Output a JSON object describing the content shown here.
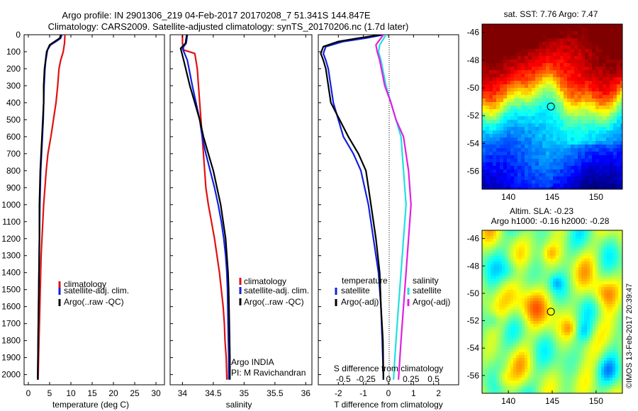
{
  "header": {
    "line1": "Argo profile: IN 2901306_219 04-Feb-2017 20170208_7 51.341S 144.847E",
    "line2": "Climatology: CARS2009. Satellite-adjusted climatology: synTS_20170206.nc (1.7d later)"
  },
  "colors": {
    "climatology": "#e01010",
    "satellite": "#1020e0",
    "argo": "#000000",
    "sat_salinity": "#20e0e0",
    "argo_salinity": "#e020e0"
  },
  "depth_ticks": [
    "0",
    "100",
    "200",
    "300",
    "400",
    "500",
    "600",
    "700",
    "800",
    "900",
    "1000",
    "1100",
    "1200",
    "1300",
    "1400",
    "1500",
    "1600",
    "1700",
    "1800",
    "1900",
    "2000"
  ],
  "chart_data": [
    {
      "type": "line",
      "panel": "temperature",
      "xlabel": "temperature (deg C)",
      "xlim": [
        -1,
        32
      ],
      "ylim": [
        2060,
        0
      ],
      "xticks": [
        "0",
        "5",
        "10",
        "15",
        "20",
        "25",
        "30"
      ],
      "xtick_values": [
        0,
        5,
        10,
        15,
        20,
        25,
        30
      ],
      "legend": [
        "climatology",
        "satellite-adj. clim.",
        "Argo(..raw -QC)"
      ],
      "series": [
        {
          "name": "climatology",
          "color": "#e01010",
          "points": [
            [
              8.6,
              0
            ],
            [
              8.5,
              50
            ],
            [
              8.2,
              100
            ],
            [
              7.6,
              150
            ],
            [
              7.2,
              200
            ],
            [
              6.9,
              300
            ],
            [
              6.5,
              400
            ],
            [
              5.9,
              500
            ],
            [
              5.3,
              600
            ],
            [
              4.6,
              700
            ],
            [
              4.2,
              800
            ],
            [
              3.9,
              900
            ],
            [
              3.6,
              1000
            ],
            [
              3.4,
              1100
            ],
            [
              3.2,
              1200
            ],
            [
              3.0,
              1300
            ],
            [
              2.9,
              1400
            ],
            [
              2.8,
              1500
            ],
            [
              2.7,
              1600
            ],
            [
              2.6,
              1700
            ],
            [
              2.5,
              1800
            ],
            [
              2.4,
              1900
            ],
            [
              2.3,
              2030
            ]
          ]
        },
        {
          "name": "satellite-adj. clim.",
          "color": "#1020e0",
          "points": [
            [
              7.9,
              0
            ],
            [
              7.6,
              20
            ],
            [
              6.5,
              40
            ],
            [
              5.2,
              60
            ],
            [
              4.5,
              90
            ],
            [
              4.1,
              150
            ],
            [
              3.9,
              200
            ],
            [
              3.7,
              300
            ],
            [
              3.6,
              400
            ],
            [
              3.5,
              500
            ],
            [
              3.3,
              600
            ],
            [
              3.1,
              700
            ],
            [
              2.9,
              800
            ],
            [
              2.8,
              900
            ],
            [
              2.7,
              1000
            ],
            [
              2.6,
              1200
            ],
            [
              2.5,
              1400
            ],
            [
              2.4,
              1600
            ],
            [
              2.3,
              1800
            ],
            [
              2.2,
              2030
            ]
          ]
        },
        {
          "name": "Argo(..raw -QC)",
          "color": "#000000",
          "points": [
            [
              7.6,
              0
            ],
            [
              7.4,
              20
            ],
            [
              6.2,
              40
            ],
            [
              5.0,
              60
            ],
            [
              4.3,
              100
            ],
            [
              3.8,
              200
            ],
            [
              3.6,
              300
            ],
            [
              3.6,
              400
            ],
            [
              3.4,
              500
            ],
            [
              3.2,
              600
            ],
            [
              3.0,
              700
            ],
            [
              2.8,
              800
            ],
            [
              2.7,
              900
            ],
            [
              2.6,
              1000
            ],
            [
              2.6,
              1200
            ],
            [
              2.5,
              1400
            ],
            [
              2.4,
              1600
            ],
            [
              2.3,
              1800
            ],
            [
              2.2,
              2030
            ]
          ]
        }
      ]
    },
    {
      "type": "line",
      "panel": "salinity",
      "xlabel": "salinity",
      "xlim": [
        33.8,
        36.1
      ],
      "ylim": [
        2060,
        0
      ],
      "xticks": [
        "34",
        "34.5",
        "35",
        "35.5",
        "36"
      ],
      "xtick_values": [
        34,
        34.5,
        35,
        35.5,
        36
      ],
      "legend": [
        "climatology",
        "satellite-adj. clim.",
        "Argo(..raw -QC)"
      ],
      "annotation": [
        "Argo INDIA",
        "PI: M Ravichandran"
      ],
      "series": [
        {
          "name": "climatology",
          "color": "#e01010",
          "points": [
            [
              34.0,
              0
            ],
            [
              34.0,
              50
            ],
            [
              34.02,
              90
            ],
            [
              34.2,
              110
            ],
            [
              34.24,
              200
            ],
            [
              34.26,
              300
            ],
            [
              34.28,
              400
            ],
            [
              34.3,
              500
            ],
            [
              34.32,
              600
            ],
            [
              34.34,
              700
            ],
            [
              34.36,
              800
            ],
            [
              34.38,
              900
            ],
            [
              34.42,
              1000
            ],
            [
              34.47,
              1100
            ],
            [
              34.52,
              1200
            ],
            [
              34.56,
              1300
            ],
            [
              34.6,
              1400
            ],
            [
              34.63,
              1500
            ],
            [
              34.66,
              1600
            ],
            [
              34.68,
              1700
            ],
            [
              34.69,
              1800
            ],
            [
              34.71,
              1900
            ],
            [
              34.72,
              2030
            ]
          ]
        },
        {
          "name": "satellite-adj. clim.",
          "color": "#1020e0",
          "points": [
            [
              34.08,
              0
            ],
            [
              34.06,
              50
            ],
            [
              34.0,
              80
            ],
            [
              34.08,
              150
            ],
            [
              34.16,
              300
            ],
            [
              34.22,
              400
            ],
            [
              34.28,
              500
            ],
            [
              34.32,
              600
            ],
            [
              34.38,
              700
            ],
            [
              34.45,
              800
            ],
            [
              34.52,
              900
            ],
            [
              34.58,
              1000
            ],
            [
              34.63,
              1100
            ],
            [
              34.67,
              1200
            ],
            [
              34.7,
              1300
            ],
            [
              34.72,
              1400
            ],
            [
              34.73,
              1500
            ],
            [
              34.74,
              1700
            ],
            [
              34.75,
              1900
            ],
            [
              34.75,
              2030
            ]
          ]
        },
        {
          "name": "Argo(..raw -QC)",
          "color": "#000000",
          "points": [
            [
              34.07,
              0
            ],
            [
              34.05,
              50
            ],
            [
              33.97,
              80
            ],
            [
              34.02,
              150
            ],
            [
              34.12,
              300
            ],
            [
              34.2,
              400
            ],
            [
              34.28,
              500
            ],
            [
              34.34,
              600
            ],
            [
              34.42,
              700
            ],
            [
              34.5,
              800
            ],
            [
              34.56,
              900
            ],
            [
              34.62,
              1000
            ],
            [
              34.66,
              1100
            ],
            [
              34.7,
              1200
            ],
            [
              34.72,
              1300
            ],
            [
              34.74,
              1400
            ],
            [
              34.75,
              1500
            ],
            [
              34.76,
              1700
            ],
            [
              34.77,
              1900
            ],
            [
              34.77,
              2030
            ]
          ]
        }
      ]
    },
    {
      "type": "line",
      "panel": "difference",
      "xlabel": "T difference from climatology",
      "xlabel_top": "S difference from climatology",
      "xlim": [
        -2.8,
        2.8
      ],
      "ylim": [
        2060,
        0
      ],
      "xticks": [
        "-2",
        "-1",
        "0",
        "1",
        "2"
      ],
      "xtick_values": [
        -2,
        -1,
        0,
        1,
        2
      ],
      "sticks": [
        "-0.5",
        "-0.25",
        "0",
        "0.25",
        "0.5"
      ],
      "stick_values": [
        -1.8,
        -0.9,
        0.0,
        0.9,
        1.8
      ],
      "legend_t_title": "temperature",
      "legend_s_title": "salinity",
      "legend_t": [
        "satellite",
        "Argo(-adj)"
      ],
      "legend_s": [
        "satellite",
        "Argo(-adj)"
      ],
      "series": [
        {
          "name": "satellite",
          "group": "temperature",
          "color": "#1020e0",
          "points": [
            [
              -0.2,
              0
            ],
            [
              -0.9,
              20
            ],
            [
              -1.8,
              40
            ],
            [
              -2.5,
              70
            ],
            [
              -2.6,
              110
            ],
            [
              -2.5,
              150
            ],
            [
              -2.4,
              200
            ],
            [
              -2.2,
              400
            ],
            [
              -1.8,
              600
            ],
            [
              -1.4,
              700
            ],
            [
              -1.1,
              800
            ],
            [
              -0.8,
              1000
            ],
            [
              -0.6,
              1200
            ],
            [
              -0.4,
              1400
            ],
            [
              -0.3,
              1600
            ],
            [
              -0.25,
              1800
            ],
            [
              -0.2,
              2030
            ]
          ]
        },
        {
          "name": "Argo(-adj)",
          "group": "temperature",
          "color": "#000000",
          "points": [
            [
              -0.3,
              0
            ],
            [
              -1.2,
              20
            ],
            [
              -2.0,
              40
            ],
            [
              -2.6,
              70
            ],
            [
              -2.7,
              110
            ],
            [
              -2.6,
              150
            ],
            [
              -2.5,
              200
            ],
            [
              -2.3,
              400
            ],
            [
              -1.6,
              600
            ],
            [
              -1.2,
              700
            ],
            [
              -0.9,
              800
            ],
            [
              -0.7,
              1000
            ],
            [
              -0.5,
              1200
            ],
            [
              -0.35,
              1400
            ],
            [
              -0.3,
              1600
            ],
            [
              -0.22,
              1800
            ],
            [
              -0.2,
              2030
            ]
          ]
        },
        {
          "name": "satellite",
          "group": "salinity",
          "color": "#20e0e0",
          "points": [
            [
              -0.1,
              0
            ],
            [
              -0.35,
              60
            ],
            [
              -0.4,
              100
            ],
            [
              -0.3,
              150
            ],
            [
              -0.1,
              300
            ],
            [
              0.1,
              400
            ],
            [
              0.3,
              500
            ],
            [
              0.5,
              600
            ],
            [
              0.6,
              800
            ],
            [
              0.7,
              1000
            ],
            [
              0.6,
              1200
            ],
            [
              0.5,
              1400
            ],
            [
              0.4,
              1600
            ],
            [
              0.3,
              1800
            ],
            [
              0.2,
              2030
            ]
          ]
        },
        {
          "name": "Argo(-adj)",
          "group": "salinity",
          "color": "#e020e0",
          "points": [
            [
              -0.2,
              0
            ],
            [
              -0.5,
              60
            ],
            [
              -0.45,
              100
            ],
            [
              -0.35,
              150
            ],
            [
              -0.15,
              300
            ],
            [
              0.1,
              400
            ],
            [
              0.3,
              500
            ],
            [
              0.6,
              600
            ],
            [
              0.8,
              800
            ],
            [
              0.9,
              1000
            ],
            [
              0.8,
              1200
            ],
            [
              0.7,
              1400
            ],
            [
              0.6,
              1600
            ],
            [
              0.5,
              1800
            ],
            [
              0.4,
              2030
            ]
          ]
        }
      ]
    },
    {
      "type": "heatmap",
      "panel": "sst_map",
      "title": "sat. SST: 7.76 Argo: 7.47",
      "xlim": [
        137,
        153
      ],
      "ylim": [
        -57.3,
        -45.4
      ],
      "xticks": [
        "140",
        "145",
        "150"
      ],
      "xtick_values": [
        140,
        145,
        150
      ],
      "yticks": [
        "-46",
        "-48",
        "-50",
        "-52",
        "-54",
        "-56"
      ],
      "ytick_values": [
        -46,
        -48,
        -50,
        -52,
        -54,
        -56
      ],
      "marker": {
        "lon": 144.847,
        "lat": -51.341
      }
    },
    {
      "type": "heatmap",
      "panel": "sla_map",
      "title_line1": "Altim. SLA: -0.23",
      "title_line2": "Argo h1000: -0.16 h2000: -0.28",
      "xlim": [
        137,
        153
      ],
      "ylim": [
        -57.3,
        -45.4
      ],
      "xticks": [
        "140",
        "145",
        "150"
      ],
      "xtick_values": [
        140,
        145,
        150
      ],
      "yticks": [
        "-46",
        "-48",
        "-50",
        "-52",
        "-54",
        "-56"
      ],
      "ytick_values": [
        -46,
        -48,
        -50,
        -52,
        -54,
        -56
      ],
      "marker": {
        "lon": 144.847,
        "lat": -51.341
      }
    }
  ],
  "watermark": "©IMOS 13-Feb-2017 20:39:47"
}
